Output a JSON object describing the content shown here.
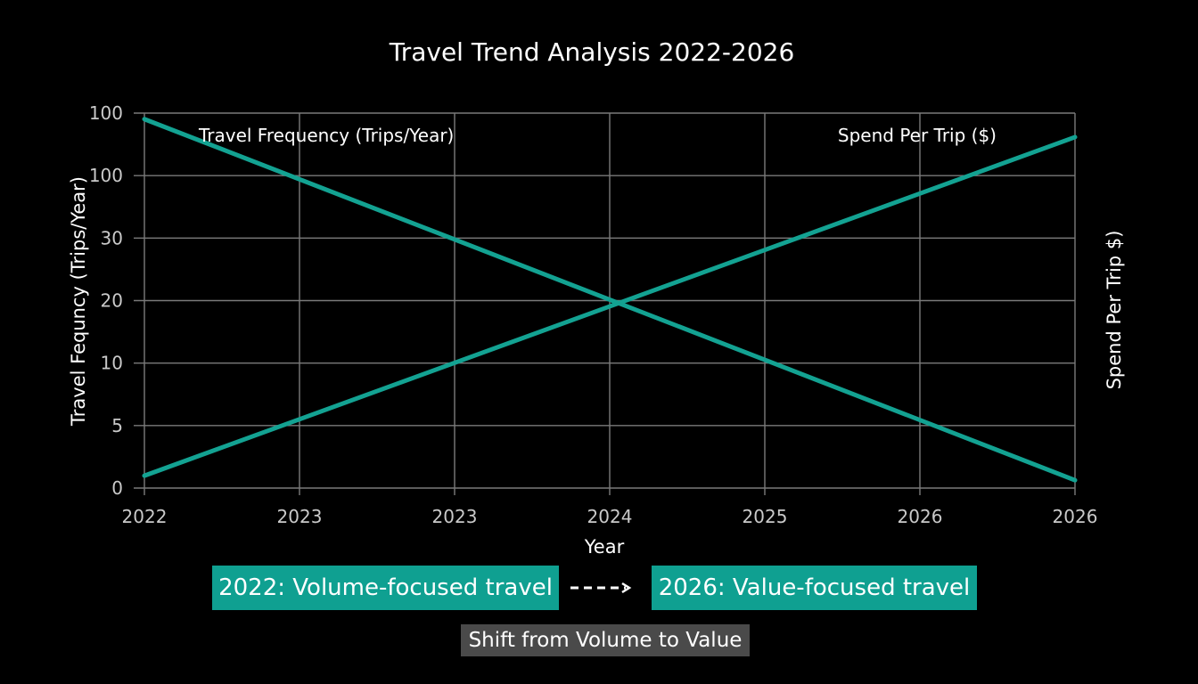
{
  "colors": {
    "background": "#000000",
    "series": "#13a292",
    "callout": "#0fa091",
    "footer_badge": "#4a4a4a",
    "grid": "#7a7a7a"
  },
  "chart_data": {
    "type": "line",
    "title": "Travel Trend Analysis 2022-2026",
    "xlabel": "Year",
    "ylabel_left": "Travel Fequncy (Trips/Year)",
    "ylabel_right": "Spend Per Trip $)",
    "x_tick_labels": [
      "2022",
      "2023",
      "2023",
      "2024",
      "2025",
      "2026",
      "2026"
    ],
    "y_tick_labels": [
      "100",
      "100",
      "30",
      "20",
      "10",
      "5",
      "0"
    ],
    "grid": true,
    "series": [
      {
        "name": "Travel Frequency (Trips/Year)",
        "x": [
          0,
          6
        ],
        "y": [
          98.4,
          2.1
        ],
        "label_position": "top-left"
      },
      {
        "name": "Spend Per Trip ($)",
        "x": [
          0,
          6
        ],
        "y": [
          3.3,
          93.6
        ],
        "label_position": "top-right"
      }
    ],
    "y_range": [
      0,
      100
    ],
    "x_range": [
      0,
      6
    ],
    "annotations": {
      "start_callout": "2022: Volume-focused travel",
      "end_callout": "2026: Value-focused travel",
      "footer": "Shift from Volume to Value"
    }
  }
}
